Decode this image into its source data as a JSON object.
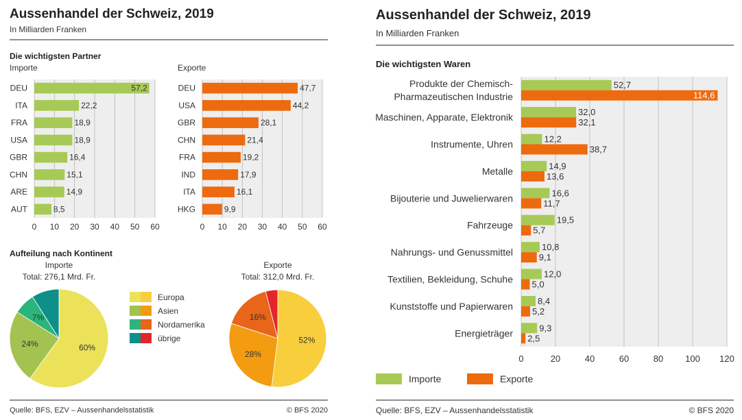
{
  "left": {
    "title": "Aussenhandel der Schweiz, 2019",
    "subtitle": "In Milliarden Franken",
    "partners_heading": "Die wichtigsten Partner",
    "continent_heading": "Aufteilung nach Kontinent",
    "source": "Quelle: BFS, EZV – Aussenhandelsstatistik",
    "copyright": "© BFS 2020"
  },
  "right": {
    "title": "Aussenhandel der Schweiz, 2019",
    "subtitle": "In Milliarden Franken",
    "goods_heading": "Die wichtigsten Waren",
    "source": "Quelle: BFS, EZV – Aussenhandelsstatistik",
    "copyright": "© BFS 2020"
  },
  "colors": {
    "import_green": "#a7ca56",
    "export_orange": "#ee6a0f",
    "plot_bg": "#eeeeee",
    "grid": "#b5b5b5",
    "europa_import": "#ece25a",
    "europa_export": "#f8ce3c",
    "asien_import": "#a3c24f",
    "asien_export": "#f39c12",
    "nordamerika_import": "#2bb57c",
    "nordamerika_export": "#e8651a",
    "uebrige_import": "#0e8f8a",
    "uebrige_export": "#e4262a"
  },
  "chart_data": [
    {
      "id": "partners_imports",
      "type": "bar",
      "orientation": "horizontal",
      "title": "Importe",
      "categories": [
        "DEU",
        "ITA",
        "FRA",
        "USA",
        "GBR",
        "CHN",
        "ARE",
        "AUT"
      ],
      "values": [
        57.2,
        22.2,
        18.9,
        18.9,
        16.4,
        15.1,
        14.9,
        8.5
      ],
      "value_labels": [
        "57,2",
        "22,2",
        "18,9",
        "18,9",
        "16,4",
        "15,1",
        "14,9",
        "8,5"
      ],
      "xlim": [
        0,
        60
      ],
      "ticks": [
        0,
        10,
        20,
        30,
        40,
        50,
        60
      ],
      "grid": true
    },
    {
      "id": "partners_exports",
      "type": "bar",
      "orientation": "horizontal",
      "title": "Exporte",
      "categories": [
        "DEU",
        "USA",
        "GBR",
        "CHN",
        "FRA",
        "IND",
        "ITA",
        "HKG"
      ],
      "values": [
        47.7,
        44.2,
        28.1,
        21.4,
        19.2,
        17.9,
        16.1,
        9.9
      ],
      "value_labels": [
        "47,7",
        "44,2",
        "28,1",
        "21,4",
        "19,2",
        "17,9",
        "16,1",
        "9,9"
      ],
      "xlim": [
        0,
        60
      ],
      "ticks": [
        0,
        10,
        20,
        30,
        40,
        50,
        60
      ],
      "grid": true
    },
    {
      "id": "continent_imports",
      "type": "pie",
      "title": "Importe",
      "subtitle": "Total: 276,1 Mrd. Fr.",
      "labels": [
        "Europa",
        "Asien",
        "Nordamerika",
        "übrige"
      ],
      "values": [
        60,
        24,
        7,
        9
      ],
      "value_labels": [
        "60%",
        "24%",
        "7%",
        ""
      ]
    },
    {
      "id": "continent_exports",
      "type": "pie",
      "title": "Exporte",
      "subtitle": "Total: 312,0 Mrd. Fr.",
      "labels": [
        "Europa",
        "Asien",
        "Nordamerika",
        "übrige"
      ],
      "values": [
        52,
        28,
        16,
        4
      ],
      "value_labels": [
        "52%",
        "28%",
        "16%",
        ""
      ]
    },
    {
      "id": "goods",
      "type": "bar",
      "orientation": "horizontal",
      "categories": [
        [
          "Produkte der Chemisch-",
          "Pharmazeutischen Industrie"
        ],
        [
          "Maschinen, Apparate, Elektronik"
        ],
        [
          "Instrumente, Uhren"
        ],
        [
          "Metalle"
        ],
        [
          "Bijouterie und Juwelierwaren"
        ],
        [
          "Fahrzeuge"
        ],
        [
          "Nahrungs- und Genussmittel"
        ],
        [
          "Textilien, Bekleidung, Schuhe"
        ],
        [
          "Kunststoffe und Papierwaren"
        ],
        [
          "Energieträger"
        ]
      ],
      "series": [
        {
          "name": "Importe",
          "values": [
            52.7,
            32.0,
            12.2,
            14.9,
            16.6,
            19.5,
            10.8,
            12.0,
            8.4,
            9.3
          ],
          "value_labels": [
            "52,7",
            "32,0",
            "12,2",
            "14,9",
            "16,6",
            "19,5",
            "10,8",
            "12,0",
            "8,4",
            "9,3"
          ]
        },
        {
          "name": "Exporte",
          "values": [
            114.6,
            32.1,
            38.7,
            13.6,
            11.7,
            5.7,
            9.1,
            5.0,
            5.2,
            2.5
          ],
          "value_labels": [
            "114,6",
            "32,1",
            "38,7",
            "13,6",
            "11,7",
            "5,7",
            "9,1",
            "5,0",
            "5,2",
            "2,5"
          ]
        }
      ],
      "xlim": [
        0,
        120
      ],
      "ticks": [
        0,
        20,
        40,
        60,
        80,
        100,
        120
      ],
      "grid": true,
      "legend": "bottom"
    }
  ]
}
